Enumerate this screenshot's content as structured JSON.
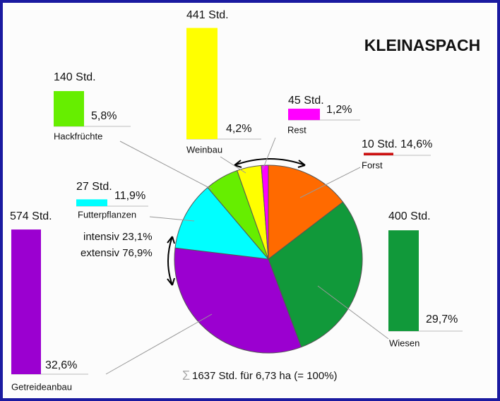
{
  "chart_data": {
    "type": "pie",
    "title": "KLEINASPACH",
    "categories": [
      "Forst",
      "Wiesen",
      "Getreideanbau",
      "Futterpflanzen",
      "Hackfrüchte",
      "Weinbau",
      "Rest"
    ],
    "values": [
      14.6,
      29.7,
      32.6,
      11.9,
      5.8,
      4.2,
      1.2
    ],
    "value_labels": [
      "14,6%",
      "29,7%",
      "32,6%",
      "11,9%",
      "5,8%",
      "4,2%",
      "1,2%"
    ],
    "colors": [
      "#ff6a00",
      "#11993a",
      "#9b00d0",
      "#00ffff",
      "#66ee00",
      "#ffff00",
      "#ff00ff"
    ],
    "hours": [
      10,
      400,
      574,
      27,
      140,
      441,
      45
    ],
    "hours_labels": [
      "10 Std.",
      "400 Std.",
      "574 Std.",
      "27 Std.",
      "140 Std.",
      "441 Std.",
      "45 Std."
    ],
    "bar_colors": [
      "#cc1111",
      "#11993a",
      "#9b00d0",
      "#00ffff",
      "#66ee00",
      "#ffff00",
      "#ff00ff"
    ],
    "annotations": [
      "intensiv 23,1%",
      "extensiv 76,9%"
    ],
    "footer_symbol": "Σ",
    "footer": "1637 Std. für 6,73 ha (= 100%)"
  }
}
